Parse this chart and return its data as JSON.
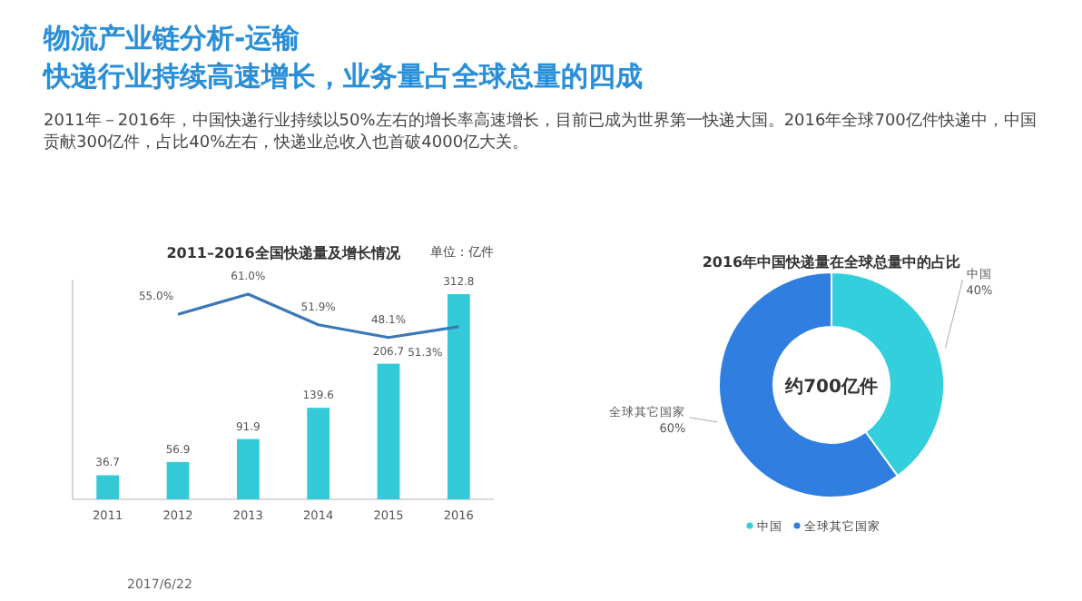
{
  "chart_data": [
    {
      "type": "other",
      "title": "物流产业链分析-运输",
      "subtitle": "快递行业持续高速增长，业务量占全球总量的四成",
      "annotations": [
        "2011年－2016年，中国快递行业持续以50%左右的增长率高速增长，目前已成为世界第一快递大国。2016年全球700亿件快递中，中国贡献300亿件，占比40%左右，快递业总收入也首破4000亿大关。",
        "2017/6/22"
      ]
    },
    {
      "type": "bar",
      "title": "2011–2016全国快递量及增长情况",
      "annotations": [
        "单位：亿件"
      ],
      "categories": [
        "2011",
        "2012",
        "2013",
        "2014",
        "2015",
        "2016"
      ],
      "series": [
        {
          "type": "bar",
          "color": "#34c9d6",
          "values": [
            36.7,
            56.9,
            91.9,
            139.6,
            206.7,
            312.8
          ]
        },
        {
          "type": "line",
          "axis": "y2",
          "color": "#3a78b8",
          "values": [
            null,
            55.0,
            61.0,
            51.9,
            48.1,
            51.3
          ],
          "value_labels": [
            null,
            "55.0%",
            "61.0%",
            "51.9%",
            "48.1%",
            "51.3%"
          ]
        }
      ],
      "tick_labels": "x",
      "data_labels": true
    },
    {
      "type": "donut",
      "title": "2016年中国快递量在全球总量中的占比",
      "categories": [
        "中国",
        "全球其它国家"
      ],
      "values": [
        40,
        60
      ],
      "colors": [
        "#34cfdc",
        "#2f7ee0"
      ],
      "value_labels": [
        "40%",
        "60%"
      ],
      "annotations": [
        "约700亿件"
      ],
      "legend": "bottom"
    }
  ]
}
